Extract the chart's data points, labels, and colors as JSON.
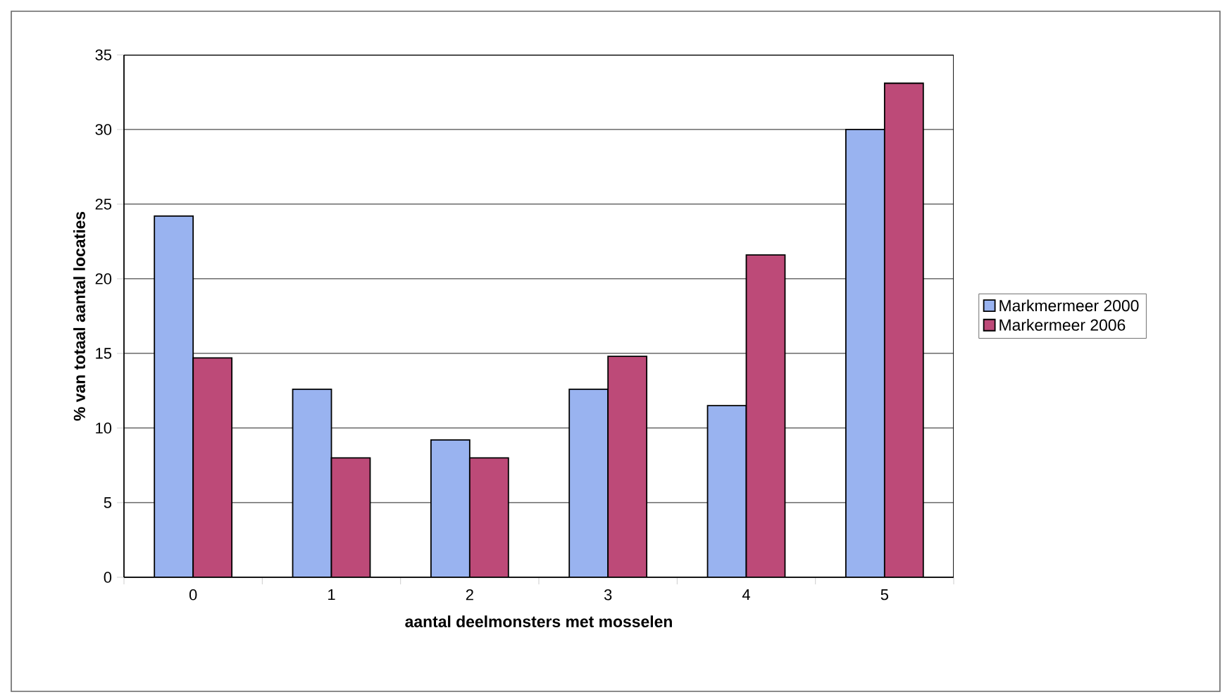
{
  "chart_data": {
    "type": "bar",
    "xlabel": "aantal deelmonsters met mosselen",
    "ylabel": "% van totaal aantal locaties",
    "categories": [
      "0",
      "1",
      "2",
      "3",
      "4",
      "5"
    ],
    "series": [
      {
        "name": "Markmermeer 2000",
        "color": "#99b3f0",
        "values": [
          24.2,
          12.6,
          9.2,
          12.6,
          11.5,
          30
        ]
      },
      {
        "name": "Markermeer 2006",
        "color": "#bd4a78",
        "values": [
          14.7,
          8.0,
          8.0,
          14.8,
          21.6,
          33.1
        ]
      }
    ],
    "ylim": [
      0,
      35
    ],
    "yticks": [
      0,
      5,
      10,
      15,
      20,
      25,
      30,
      35
    ],
    "grid": "y",
    "legend": "right"
  }
}
